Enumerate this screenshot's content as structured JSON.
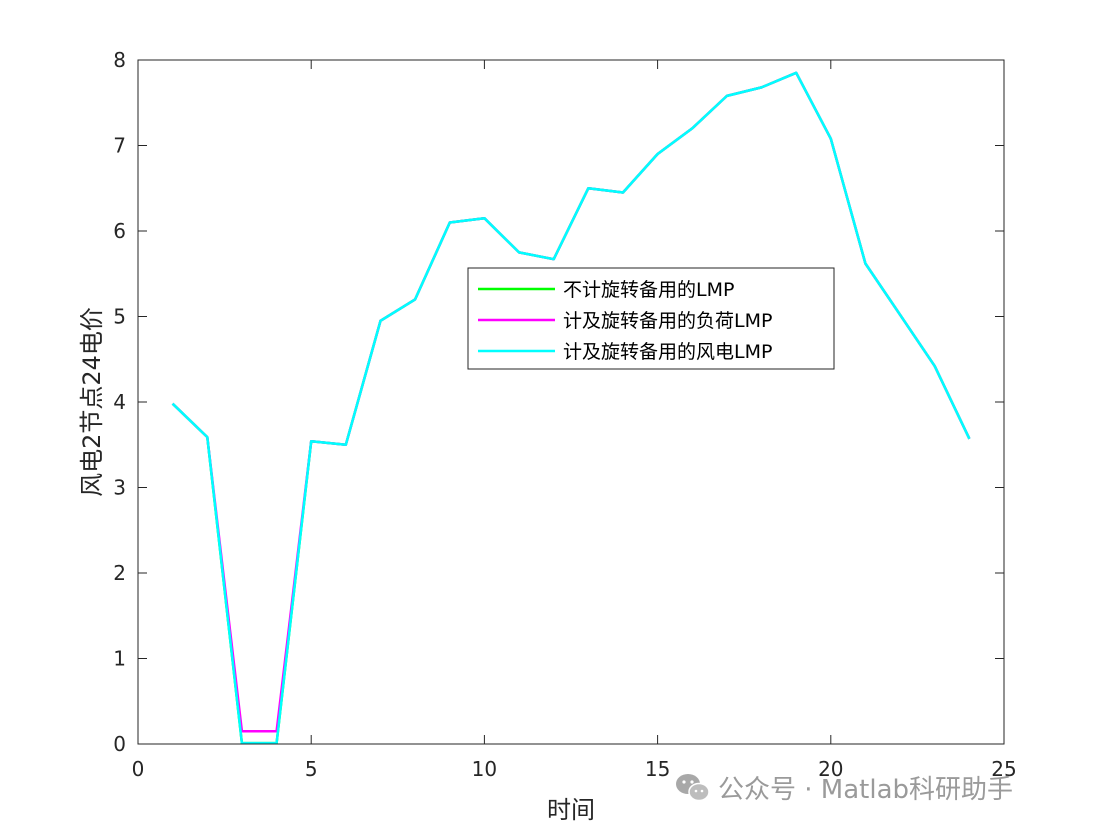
{
  "chart_data": {
    "type": "line",
    "xlabel": "时间",
    "ylabel": "风电2节点24电价",
    "xlim": [
      0,
      25
    ],
    "ylim": [
      0,
      8
    ],
    "xticks": [
      0,
      5,
      10,
      15,
      20,
      25
    ],
    "yticks": [
      0,
      1,
      2,
      3,
      4,
      5,
      6,
      7,
      8
    ],
    "grid": false,
    "legend_position": "center-right",
    "x": [
      1,
      2,
      3,
      4,
      5,
      6,
      7,
      8,
      9,
      10,
      11,
      12,
      13,
      14,
      15,
      16,
      17,
      18,
      19,
      20,
      21,
      22,
      23,
      24
    ],
    "series": [
      {
        "name": "不计旋转备用的LMP",
        "color": "#00ff00",
        "values": [
          3.98,
          3.59,
          0.01,
          0.01,
          3.54,
          3.5,
          4.95,
          5.2,
          6.1,
          6.15,
          5.75,
          5.67,
          6.5,
          6.45,
          6.9,
          7.2,
          7.58,
          7.68,
          7.85,
          7.08,
          5.62,
          5.02,
          4.42,
          3.57
        ]
      },
      {
        "name": "计及旋转备用的负荷LMP",
        "color": "#ff00ff",
        "values": [
          3.98,
          3.59,
          0.15,
          0.15,
          3.54,
          3.5,
          4.95,
          5.2,
          6.1,
          6.15,
          5.75,
          5.67,
          6.5,
          6.45,
          6.9,
          7.2,
          7.58,
          7.68,
          7.85,
          7.08,
          5.62,
          5.02,
          4.42,
          3.57
        ]
      },
      {
        "name": "计及旋转备用的风电LMP",
        "color": "#00ffff",
        "values": [
          3.98,
          3.59,
          0.01,
          0.01,
          3.54,
          3.5,
          4.95,
          5.2,
          6.1,
          6.15,
          5.75,
          5.67,
          6.5,
          6.45,
          6.9,
          7.2,
          7.58,
          7.68,
          7.85,
          7.08,
          5.62,
          5.02,
          4.42,
          3.57
        ]
      }
    ]
  },
  "watermark": {
    "text": "公众号 · Matlab科研助手",
    "icon": "wechat-icon"
  }
}
